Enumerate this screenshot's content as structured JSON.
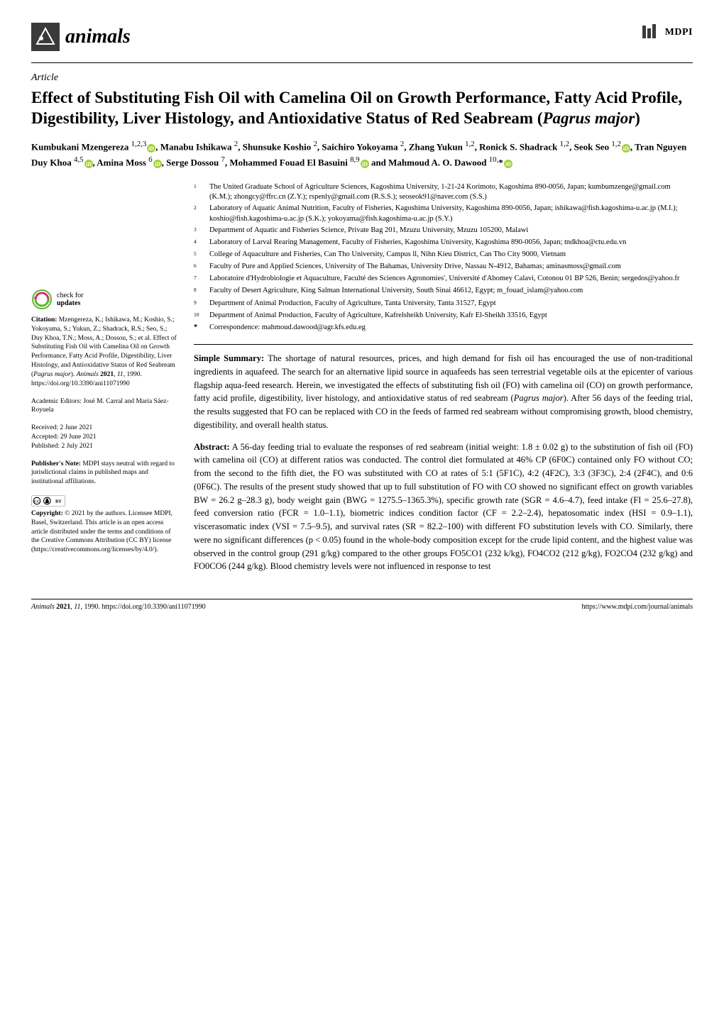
{
  "journal": {
    "name": "animals",
    "publisher": "MDPI"
  },
  "article_type": "Article",
  "title": "Effect of Substituting Fish Oil with Camelina Oil on Growth Performance, Fatty Acid Profile, Digestibility, Liver Histology, and Antioxidative Status of Red Seabream (Pagrus major)",
  "authors_html": "Kumbukani Mzengereza <sup>1,2,3</sup>◉, Manabu Ishikawa <sup>2</sup>, Shunsuke Koshio <sup>2</sup>, Saichiro Yokoyama <sup>2</sup>, Zhang Yukun <sup>1,2</sup>, Ronick S. Shadrack <sup>1,2</sup>, Seok Seo <sup>1,2</sup>◉, Tran Nguyen Duy Khoa <sup>4,5</sup>◉, Amina Moss <sup>6</sup>◉, Serge Dossou <sup>7</sup>, Mohammed Fouad El Basuini <sup>8,9</sup>◉ and Mahmoud A. O. Dawood <sup>10,</sup>*◉",
  "affiliations": [
    {
      "n": "1",
      "text": "The United Graduate School of Agriculture Sciences, Kagoshima University, 1-21-24 Korimoto, Kagoshima 890-0056, Japan; kumbumzenge@gmail.com (K.M.); zhongcy@ffrc.cn (Z.Y.); rspenly@gmail.com (R.S.S.); seoseok91@naver.com (S.S.)"
    },
    {
      "n": "2",
      "text": "Laboratory of Aquatic Animal Nutrition, Faculty of Fisheries, Kagoshima University, Kagoshima 890-0056, Japan; ishikawa@fish.kagoshima-u.ac.jp (M.I.); koshio@fish.kagoshima-u.ac.jp (S.K.); yokoyama@fish.kagoshima-u.ac.jp (S.Y.)"
    },
    {
      "n": "3",
      "text": "Department of Aquatic and Fisheries Science, Private Bag 201, Mzuzu University, Mzuzu 105200, Malawi"
    },
    {
      "n": "4",
      "text": "Laboratory of Larval Rearing Management, Faculty of Fisheries, Kagoshima University, Kagoshima 890-0056, Japan; tndkhoa@ctu.edu.vn"
    },
    {
      "n": "5",
      "text": "College of Aquaculture and Fisheries, Can Tho University, Campus ll, Nihn Kieu District, Can Tho City 9000, Vietnam"
    },
    {
      "n": "6",
      "text": "Faculty of Pure and Applied Sciences, University of The Bahamas, University Drive, Nassau N-4912, Bahamas; aminasmoss@gmail.com"
    },
    {
      "n": "7",
      "text": "Laboratoire d'Hydrobiologie et Aquaculture, Faculté des Sciences Agronomies', Université d'Abomey Calavi, Cotonou 01 BP 526, Benin; sergedos@yahoo.fr"
    },
    {
      "n": "8",
      "text": "Faculty of Desert Agriculture, King Salman International University, South Sinai 46612, Egypt; m_fouad_islam@yahoo.com"
    },
    {
      "n": "9",
      "text": "Department of Animal Production, Faculty of Agriculture, Tanta University, Tanta 31527, Egypt"
    },
    {
      "n": "10",
      "text": "Department of Animal Production, Faculty of Agriculture, Kafrelsheikh University, Kafr El-Sheikh 33516, Egypt"
    }
  ],
  "correspondence": {
    "label": "*",
    "text": "Correspondence: mahmoud.dawood@agr.kfs.edu.eg"
  },
  "sidebar": {
    "check_updates": "check for updates",
    "citation_label": "Citation:",
    "citation": "Mzengereza, K.; Ishikawa, M.; Koshio, S.; Yokoyama, S.; Yukun, Z.; Shadrack, R.S.; Seo, S.; Duy Khoa, T.N.; Moss, A.; Dossou, S.; et al. Effect of Substituting Fish Oil with Camelina Oil on Growth Performance, Fatty Acid Profile, Digestibility, Liver Histology, and Antioxidative Status of Red Seabream (Pagrus major). Animals 2021, 11, 1990. https://doi.org/10.3390/ani11071990",
    "editors_label": "Academic Editors:",
    "editors": "José M. Carral and María Sáez-Royuela",
    "received": "Received: 2 June 2021",
    "accepted": "Accepted: 29 June 2021",
    "published": "Published: 2 July 2021",
    "pubnote_label": "Publisher's Note:",
    "pubnote": "MDPI stays neutral with regard to jurisdictional claims in published maps and institutional affiliations.",
    "copyright_label": "Copyright:",
    "copyright": "© 2021 by the authors. Licensee MDPI, Basel, Switzerland. This article is an open access article distributed under the terms and conditions of the Creative Commons Attribution (CC BY) license (https://creativecommons.org/licenses/by/4.0/)."
  },
  "simple_summary": {
    "label": "Simple Summary:",
    "text": "The shortage of natural resources, prices, and high demand for fish oil has encouraged the use of non-traditional ingredients in aquafeed. The search for an alternative lipid source in aquafeeds has seen terrestrial vegetable oils at the epicenter of various flagship aqua-feed research. Herein, we investigated the effects of substituting fish oil (FO) with camelina oil (CO) on growth performance, fatty acid profile, digestibility, liver histology, and antioxidative status of red seabream (Pagrus major). After 56 days of the feeding trial, the results suggested that FO can be replaced with CO in the feeds of farmed red seabream without compromising growth, blood chemistry, digestibility, and overall health status."
  },
  "abstract": {
    "label": "Abstract:",
    "text": "A 56-day feeding trial to evaluate the responses of red seabream (initial weight: 1.8 ± 0.02 g) to the substitution of fish oil (FO) with camelina oil (CO) at different ratios was conducted. The control diet formulated at 46% CP (6F0C) contained only FO without CO; from the second to the fifth diet, the FO was substituted with CO at rates of 5:1 (5F1C), 4:2 (4F2C), 3:3 (3F3C), 2:4 (2F4C), and 0:6 (0F6C). The results of the present study showed that up to full substitution of FO with CO showed no significant effect on growth variables BW = 26.2 g–28.3 g), body weight gain (BWG = 1275.5–1365.3%), specific growth rate (SGR = 4.6–4.7), feed intake (FI = 25.6–27.8), feed conversion ratio (FCR = 1.0–1.1), biometric indices condition factor (CF = 2.2–2.4), hepatosomatic index (HSI = 0.9–1.1), viscerasomatic index (VSI = 7.5–9.5), and survival rates (SR = 82.2–100) with different FO substitution levels with CO. Similarly, there were no significant differences (p < 0.05) found in the whole-body composition except for the crude lipid content, and the highest value was observed in the control group (291 g/kg) compared to the other groups FO5CO1 (232 k/kg), FO4CO2 (212 g/kg), FO2CO4 (232 g/kg) and FO0CO6 (244 g/kg). Blood chemistry levels were not influenced in response to test"
  },
  "footer": {
    "left": "Animals 2021, 11, 1990. https://doi.org/10.3390/ani11071990",
    "right": "https://www.mdpi.com/journal/animals"
  },
  "colors": {
    "logo_bg": "#3a3a3a",
    "logo_accent": "#ffffff",
    "orcid": "#a6ce39",
    "check": "#5db82f",
    "text": "#000000"
  }
}
